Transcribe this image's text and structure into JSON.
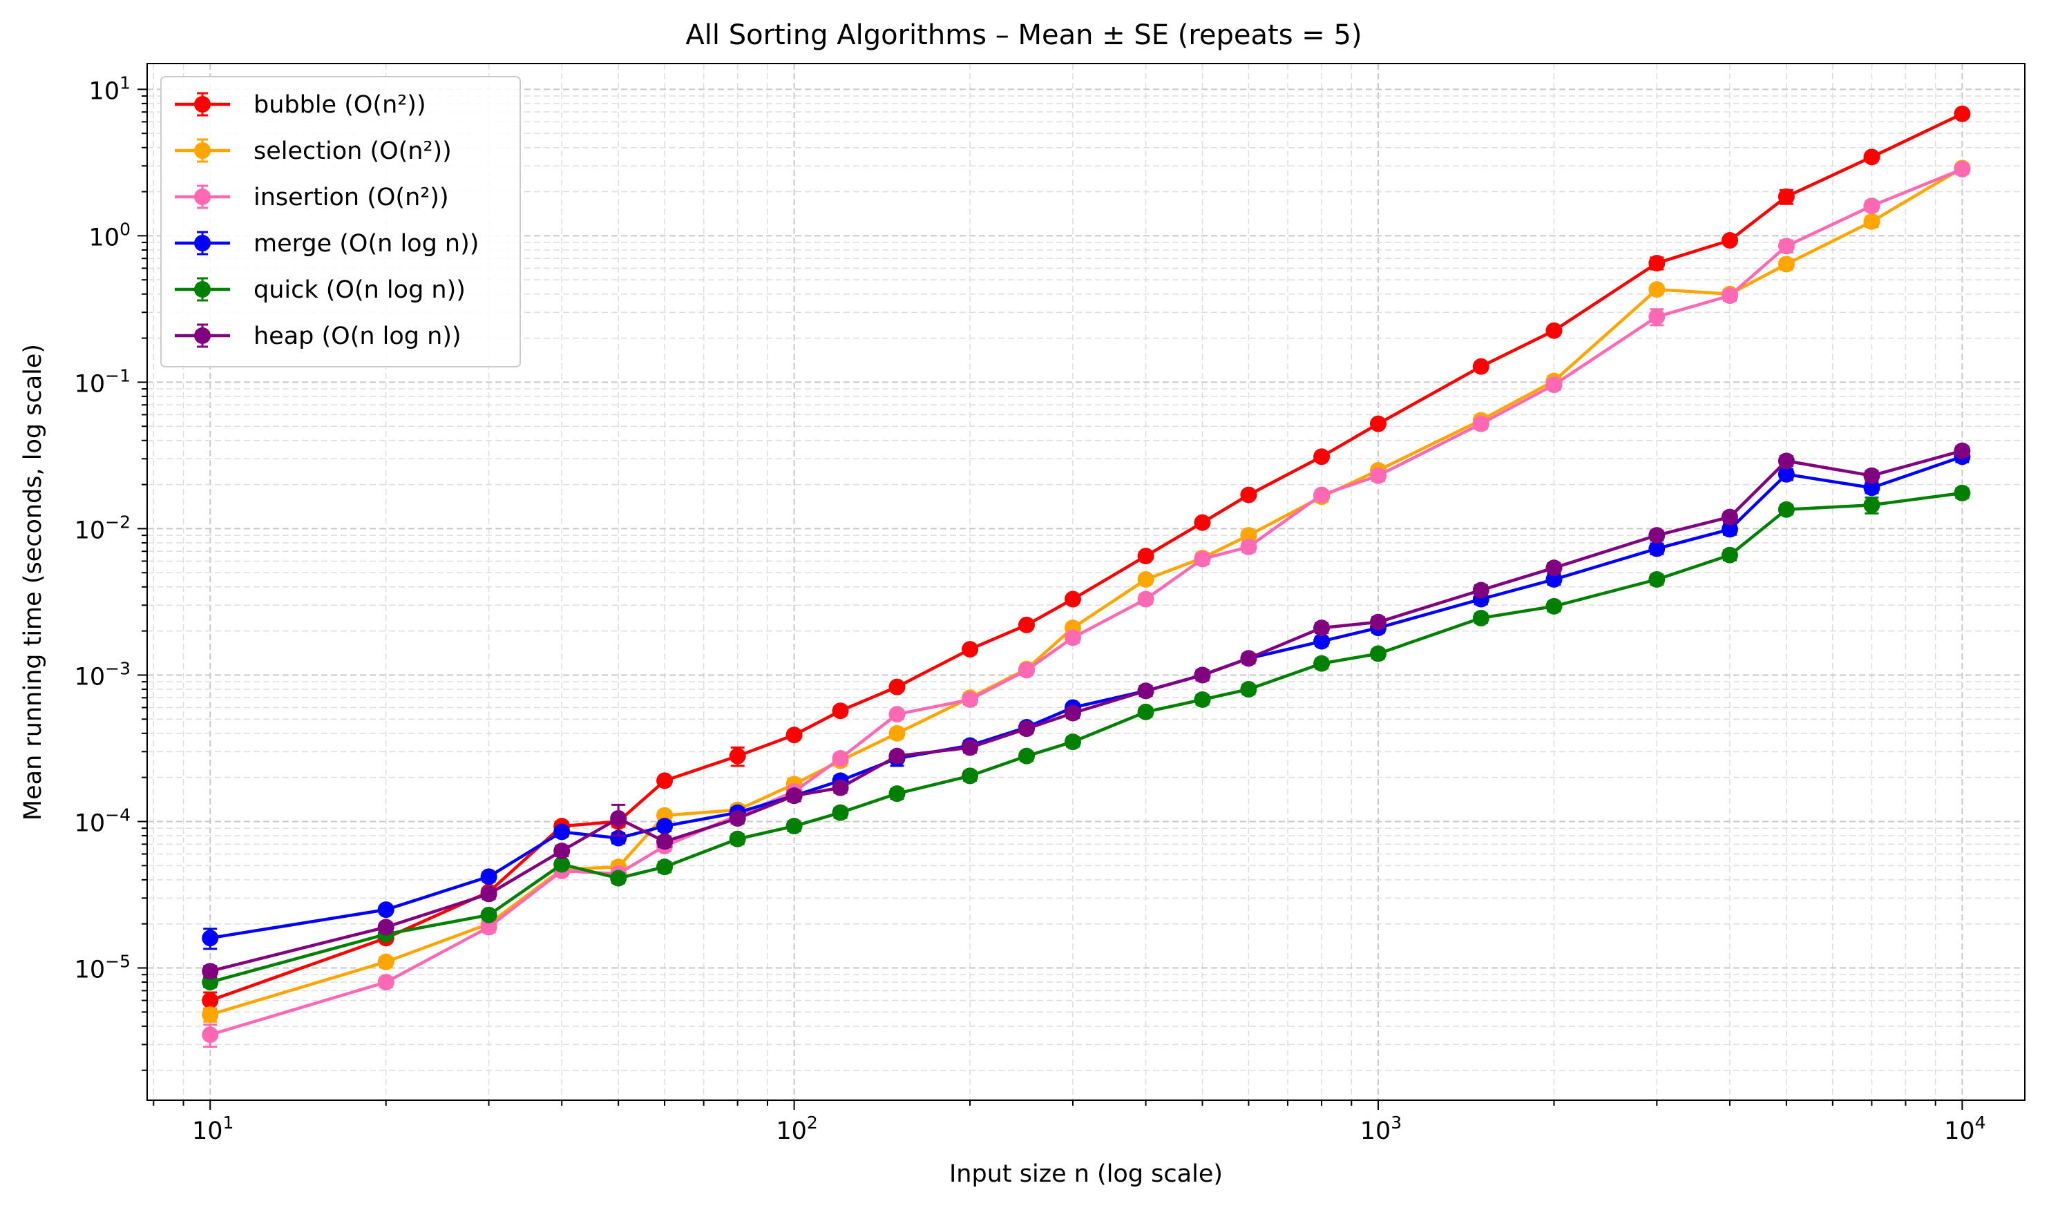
{
  "chart_data": {
    "type": "line",
    "title": "All Sorting Algorithms – Mean ± SE (repeats = 5)",
    "xlabel": "Input size n (log scale)",
    "ylabel": "Mean running time (seconds, log scale)",
    "xscale": "log",
    "yscale": "log",
    "xlim": [
      7.8,
      12800
    ],
    "ylim": [
      1.25e-06,
      15
    ],
    "grid": true,
    "legend_position": "top-left",
    "x_ticks": [
      {
        "value": 10,
        "base": "10",
        "exp": "1"
      },
      {
        "value": 100,
        "base": "10",
        "exp": "2"
      },
      {
        "value": 1000,
        "base": "10",
        "exp": "3"
      },
      {
        "value": 10000,
        "base": "10",
        "exp": "4"
      }
    ],
    "y_ticks": [
      {
        "value": 1e-05,
        "base": "10",
        "exp": "−5"
      },
      {
        "value": 0.0001,
        "base": "10",
        "exp": "−4"
      },
      {
        "value": 0.001,
        "base": "10",
        "exp": "−3"
      },
      {
        "value": 0.01,
        "base": "10",
        "exp": "−2"
      },
      {
        "value": 0.1,
        "base": "10",
        "exp": "−1"
      },
      {
        "value": 1,
        "base": "10",
        "exp": "0"
      },
      {
        "value": 10,
        "base": "10",
        "exp": "1"
      }
    ],
    "x": [
      10,
      20,
      30,
      40,
      50,
      60,
      80,
      100,
      120,
      150,
      200,
      250,
      300,
      400,
      500,
      600,
      800,
      1000,
      1500,
      2000,
      3000,
      4000,
      5000,
      7000,
      10000
    ],
    "series": [
      {
        "name": "bubble",
        "legend_label": "bubble (O(n²))",
        "color": "#ff0000",
        "values": [
          6e-06,
          1.6e-05,
          3.3e-05,
          9.3e-05,
          0.0001,
          0.00019,
          0.00028,
          0.00039,
          0.00057,
          0.00083,
          0.0015,
          0.0022,
          0.0033,
          0.0065,
          0.011,
          0.017,
          0.031,
          0.052,
          0.128,
          0.225,
          0.65,
          0.93,
          1.85,
          3.45,
          6.8
        ],
        "errors": [
          8e-07,
          1e-06,
          2e-06,
          5e-06,
          8e-06,
          1e-05,
          4e-05,
          2e-05,
          4e-05,
          5e-05,
          8e-05,
          0.00012,
          0.0002,
          0.0003,
          0.0006,
          0.0009,
          0.0015,
          0.0025,
          0.007,
          0.012,
          0.06,
          0.05,
          0.2,
          0.15,
          0.3
        ]
      },
      {
        "name": "selection",
        "legend_label": "selection (O(n²))",
        "color": "#ffa500",
        "values": [
          4.8e-06,
          1.1e-05,
          2e-05,
          4.7e-05,
          4.9e-05,
          0.00011,
          0.00012,
          0.00018,
          0.00026,
          0.0004,
          0.0007,
          0.0011,
          0.0021,
          0.0045,
          0.0063,
          0.009,
          0.0165,
          0.025,
          0.055,
          0.102,
          0.43,
          0.4,
          0.64,
          1.25,
          2.9
        ],
        "errors": [
          5e-07,
          8e-07,
          1.5e-06,
          3e-06,
          4e-06,
          8e-06,
          1e-05,
          1.5e-05,
          2e-05,
          3e-05,
          5e-05,
          8e-05,
          0.00015,
          0.0003,
          0.0005,
          0.0007,
          0.0012,
          0.0018,
          0.004,
          0.008,
          0.03,
          0.03,
          0.05,
          0.1,
          0.2
        ]
      },
      {
        "name": "insertion",
        "legend_label": "insertion (O(n²))",
        "color": "#ff69b4",
        "values": [
          3.5e-06,
          8e-06,
          1.9e-05,
          4.6e-05,
          4.4e-05,
          6.8e-05,
          0.00011,
          0.00016,
          0.00027,
          0.00054,
          0.00068,
          0.00108,
          0.0018,
          0.0033,
          0.0062,
          0.0075,
          0.017,
          0.023,
          0.052,
          0.096,
          0.28,
          0.39,
          0.85,
          1.6,
          2.85
        ],
        "errors": [
          6e-07,
          6e-07,
          1.5e-06,
          3e-06,
          3e-06,
          5e-06,
          8e-06,
          1.2e-05,
          2e-05,
          4e-05,
          5e-05,
          8e-05,
          0.00013,
          0.00025,
          0.0005,
          0.0006,
          0.0012,
          0.0018,
          0.004,
          0.007,
          0.035,
          0.03,
          0.08,
          0.12,
          0.2
        ]
      },
      {
        "name": "merge",
        "legend_label": "merge (O(n log n))",
        "color": "#0000ff",
        "values": [
          1.6e-05,
          2.5e-05,
          4.2e-05,
          8.5e-05,
          7.7e-05,
          9.3e-05,
          0.000115,
          0.00015,
          0.00019,
          0.00027,
          0.00033,
          0.00044,
          0.0006,
          0.00078,
          0.001,
          0.0013,
          0.0017,
          0.0021,
          0.0033,
          0.0045,
          0.0073,
          0.0099,
          0.0235,
          0.019,
          0.031
        ],
        "errors": [
          2.5e-06,
          1.5e-06,
          3e-06,
          6e-06,
          6e-06,
          7e-06,
          9e-06,
          1.2e-05,
          1.5e-05,
          3e-05,
          2.5e-05,
          3e-05,
          4e-05,
          5e-05,
          7e-05,
          9e-05,
          0.00012,
          0.00015,
          0.00025,
          0.00035,
          0.0006,
          0.0008,
          0.002,
          0.0015,
          0.0025
        ]
      },
      {
        "name": "quick",
        "legend_label": "quick (O(n log n))",
        "color": "#008000",
        "values": [
          8e-06,
          1.7e-05,
          2.3e-05,
          5.1e-05,
          4.1e-05,
          4.9e-05,
          7.6e-05,
          9.3e-05,
          0.000115,
          0.000155,
          0.000205,
          0.00028,
          0.00035,
          0.00056,
          0.00068,
          0.0008,
          0.0012,
          0.0014,
          0.00245,
          0.00295,
          0.0045,
          0.0066,
          0.0135,
          0.0145,
          0.0175
        ],
        "errors": [
          6e-07,
          1e-06,
          1.5e-06,
          3e-06,
          3e-06,
          4e-06,
          6e-06,
          7e-06,
          9e-06,
          1.2e-05,
          1.5e-05,
          2e-05,
          2.5e-05,
          4e-05,
          5e-05,
          6e-05,
          9e-05,
          0.0001,
          0.00018,
          0.00022,
          0.00035,
          0.0005,
          0.001,
          0.0018,
          0.0013
        ]
      },
      {
        "name": "heap",
        "legend_label": "heap (O(n log n))",
        "color": "#800080",
        "values": [
          9.5e-06,
          1.9e-05,
          3.2e-05,
          6.3e-05,
          0.000105,
          7.3e-05,
          0.000105,
          0.00015,
          0.00017,
          0.00028,
          0.00032,
          0.00043,
          0.00055,
          0.00078,
          0.001,
          0.0013,
          0.0021,
          0.0023,
          0.0038,
          0.0054,
          0.009,
          0.012,
          0.029,
          0.023,
          0.034
        ],
        "errors": [
          8e-07,
          1.2e-06,
          2.5e-06,
          5e-06,
          2.5e-05,
          6e-06,
          8e-06,
          1.2e-05,
          1.3e-05,
          2e-05,
          2.5e-05,
          3e-05,
          4e-05,
          6e-05,
          8e-05,
          0.0001,
          0.00016,
          0.00018,
          0.0003,
          0.0004,
          0.0007,
          0.0009,
          0.0023,
          0.0018,
          0.0025
        ]
      }
    ]
  }
}
